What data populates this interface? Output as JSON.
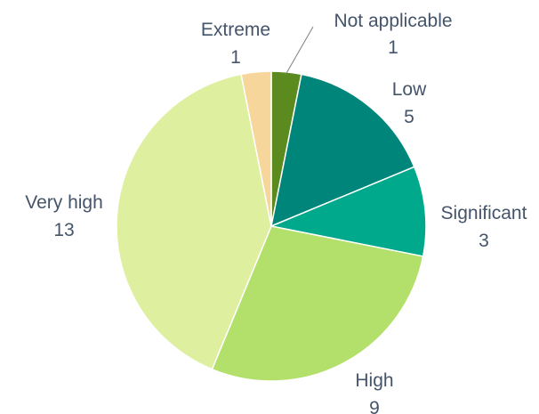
{
  "chart_data": {
    "type": "pie",
    "title": "",
    "start": "top",
    "direction": "clockwise",
    "slices": [
      {
        "label": "Not applicable",
        "value": 1,
        "color": "#5B8A1E"
      },
      {
        "label": "Low",
        "value": 5,
        "color": "#00857A"
      },
      {
        "label": "Significant",
        "value": 3,
        "color": "#00A98B"
      },
      {
        "label": "High",
        "value": 9,
        "color": "#B3DF6B"
      },
      {
        "label": "Very high",
        "value": 13,
        "color": "#DFEFA0"
      },
      {
        "label": "Extreme",
        "value": 1,
        "color": "#F7D69B"
      }
    ]
  }
}
